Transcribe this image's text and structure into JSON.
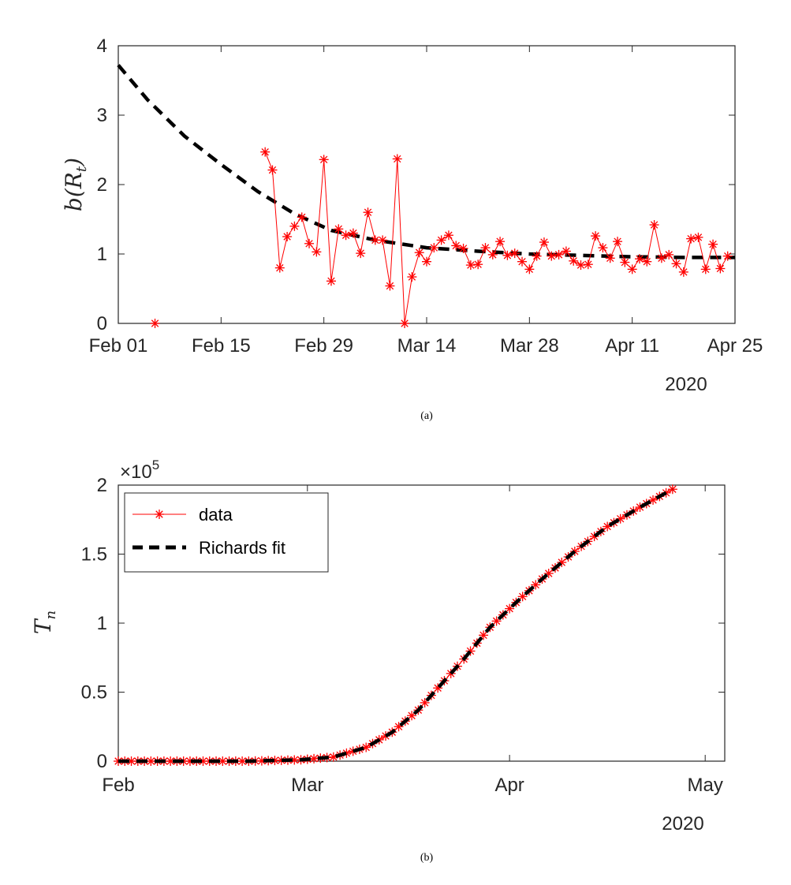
{
  "figure": {
    "caption_a": "(a)",
    "caption_b": "(b)"
  },
  "chart_data": [
    {
      "type": "line",
      "panel": "a",
      "title": "",
      "xlabel": "",
      "ylabel_base": "b(",
      "ylabel_sym": "R",
      "ylabel_sub": "t",
      "ylabel_close": ")",
      "x_ticks": [
        "Feb 01",
        "Feb 15",
        "Feb 29",
        "Mar 14",
        "Mar 28",
        "Apr 11",
        "Apr 25"
      ],
      "x_year": "2020",
      "xlim": [
        "2020-02-01",
        "2020-04-25"
      ],
      "ylim": [
        0,
        4
      ],
      "y_ticks": [
        "0",
        "1",
        "2",
        "3",
        "4"
      ],
      "grid": false,
      "series": [
        {
          "style": "data-markers",
          "color": "#ff0000",
          "isolated_points": [
            {
              "x": "2020-02-06",
              "y": 0
            }
          ],
          "x_start": "2020-02-21",
          "y": [
            2.47,
            2.21,
            0.8,
            1.25,
            1.4,
            1.53,
            1.15,
            1.03,
            2.36,
            0.61,
            1.36,
            1.27,
            1.3,
            1.01,
            1.6,
            1.2,
            1.2,
            0.54,
            2.37,
            0.0,
            0.67,
            1.02,
            0.89,
            1.09,
            1.2,
            1.27,
            1.12,
            1.08,
            0.84,
            0.85,
            1.09,
            0.99,
            1.18,
            0.98,
            1.01,
            0.89,
            0.78,
            0.97,
            1.17,
            0.97,
            0.99,
            1.04,
            0.9,
            0.84,
            0.85,
            1.26,
            1.09,
            0.94,
            1.18,
            0.88,
            0.78,
            0.93,
            0.89,
            1.42,
            0.94,
            0.99,
            0.86,
            0.74,
            1.22,
            1.24,
            0.78,
            1.14,
            0.79,
            0.97
          ]
        },
        {
          "style": "fit-dashed",
          "color": "#000000",
          "points": [
            {
              "x": "2020-02-01",
              "y": 3.72
            },
            {
              "x": "2020-02-05",
              "y": 3.22
            },
            {
              "x": "2020-02-10",
              "y": 2.7
            },
            {
              "x": "2020-02-15",
              "y": 2.29
            },
            {
              "x": "2020-02-20",
              "y": 1.9
            },
            {
              "x": "2020-02-25",
              "y": 1.58
            },
            {
              "x": "2020-03-01",
              "y": 1.34
            },
            {
              "x": "2020-03-07",
              "y": 1.2
            },
            {
              "x": "2020-03-14",
              "y": 1.09
            },
            {
              "x": "2020-03-21",
              "y": 1.04
            },
            {
              "x": "2020-03-28",
              "y": 1.0
            },
            {
              "x": "2020-04-04",
              "y": 0.98
            },
            {
              "x": "2020-04-11",
              "y": 0.96
            },
            {
              "x": "2020-04-18",
              "y": 0.95
            },
            {
              "x": "2020-04-25",
              "y": 0.95
            }
          ]
        }
      ]
    },
    {
      "type": "line",
      "panel": "b",
      "title": "",
      "xlabel": "",
      "ylabel_base": "T",
      "ylabel_sub": "n",
      "multiplier_base": "×10",
      "multiplier_exp": "5",
      "x_ticks": [
        "Feb",
        "Mar",
        "Apr",
        "May"
      ],
      "x_year": "2020",
      "xlim": [
        "2020-02-01",
        "2020-05-04"
      ],
      "ylim": [
        0,
        2
      ],
      "y_ticks": [
        "0",
        "0.5",
        "1",
        "1.5",
        "2"
      ],
      "grid": false,
      "legend_position": "top-left",
      "series": [
        {
          "name": "data",
          "style": "data-markers",
          "color": "#ff0000",
          "x_start": "2020-02-01",
          "x_end": "2020-04-26",
          "points": [
            {
              "x": "2020-02-01",
              "y": 0.0
            },
            {
              "x": "2020-02-21",
              "y": 0.0
            },
            {
              "x": "2020-02-29",
              "y": 0.01
            },
            {
              "x": "2020-03-05",
              "y": 0.03
            },
            {
              "x": "2020-03-10",
              "y": 0.1
            },
            {
              "x": "2020-03-14",
              "y": 0.21
            },
            {
              "x": "2020-03-18",
              "y": 0.37
            },
            {
              "x": "2020-03-21",
              "y": 0.53
            },
            {
              "x": "2020-03-25",
              "y": 0.74
            },
            {
              "x": "2020-03-29",
              "y": 0.97
            },
            {
              "x": "2020-04-02",
              "y": 1.15
            },
            {
              "x": "2020-04-06",
              "y": 1.32
            },
            {
              "x": "2020-04-11",
              "y": 1.52
            },
            {
              "x": "2020-04-16",
              "y": 1.7
            },
            {
              "x": "2020-04-21",
              "y": 1.84
            },
            {
              "x": "2020-04-26",
              "y": 1.97
            }
          ]
        },
        {
          "name": "Richards fit",
          "style": "fit-dashed",
          "color": "#000000"
        }
      ]
    }
  ]
}
